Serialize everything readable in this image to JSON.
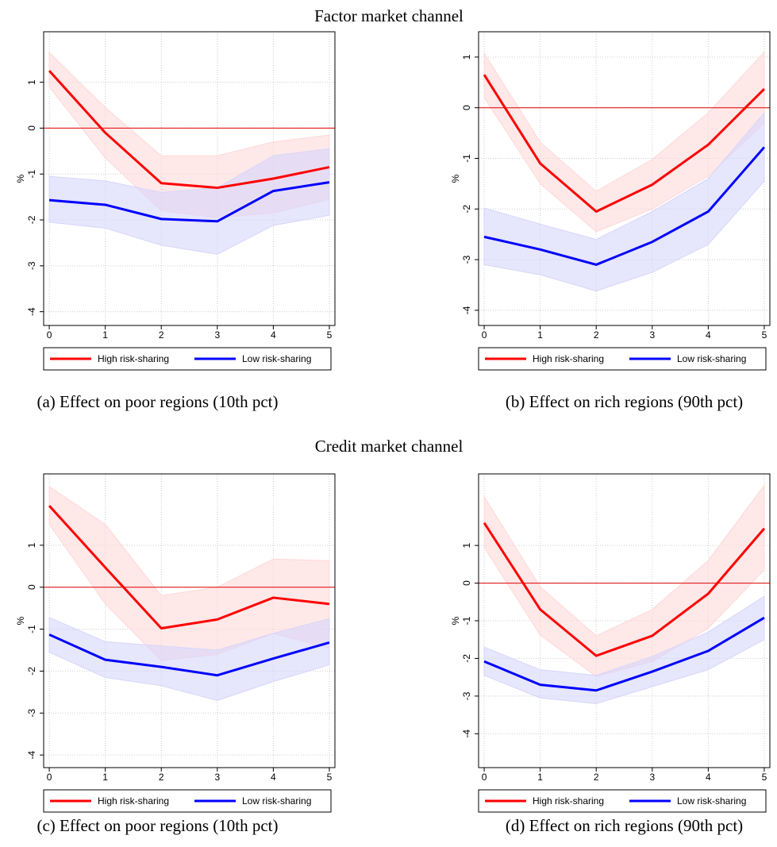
{
  "headings": [
    "Factor market channel",
    "Credit market channel"
  ],
  "chart_data": [
    {
      "type": "line",
      "caption": "(a) Effect on poor regions (10th pct)",
      "ylabel": "%",
      "x": [
        0,
        1,
        2,
        3,
        4,
        5
      ],
      "xlim": [
        -0.1,
        5.1
      ],
      "xticks": [
        0,
        1,
        2,
        3,
        4,
        5
      ],
      "ylim": [
        -4.3,
        2.1
      ],
      "yticks": [
        1,
        0,
        -1,
        -2,
        -3,
        -4
      ],
      "grid": true,
      "hline": 0,
      "hline_color": "#e00000",
      "series": [
        {
          "name": "High risk-sharing",
          "color": "#ff0000",
          "band_color": "#ffd8d8",
          "values": [
            1.25,
            -0.1,
            -1.2,
            -1.3,
            -1.1,
            -0.85
          ],
          "upper": [
            1.65,
            0.45,
            -0.6,
            -0.6,
            -0.3,
            -0.15
          ],
          "lower": [
            0.9,
            -0.65,
            -1.8,
            -1.95,
            -1.85,
            -1.55
          ]
        },
        {
          "name": "Low risk-sharing",
          "color": "#0000ff",
          "band_color": "#d6d6fb",
          "values": [
            -1.57,
            -1.67,
            -1.98,
            -2.03,
            -1.37,
            -1.18
          ],
          "upper": [
            -1.05,
            -1.15,
            -1.4,
            -1.3,
            -0.6,
            -0.45
          ],
          "lower": [
            -2.05,
            -2.18,
            -2.55,
            -2.75,
            -2.12,
            -1.9
          ]
        }
      ]
    },
    {
      "type": "line",
      "caption": "(b) Effect on rich regions (90th pct)",
      "ylabel": "%",
      "x": [
        0,
        1,
        2,
        3,
        4,
        5
      ],
      "xlim": [
        -0.1,
        5.1
      ],
      "xticks": [
        0,
        1,
        2,
        3,
        4,
        5
      ],
      "ylim": [
        -4.3,
        1.5
      ],
      "yticks": [
        1,
        0,
        -1,
        -2,
        -3,
        -4
      ],
      "grid": true,
      "hline": 0,
      "hline_color": "#e00000",
      "series": [
        {
          "name": "High risk-sharing",
          "color": "#ff0000",
          "band_color": "#ffd8d8",
          "values": [
            0.65,
            -1.1,
            -2.05,
            -1.52,
            -0.73,
            0.37
          ],
          "upper": [
            1.08,
            -0.68,
            -1.65,
            -1.02,
            -0.1,
            1.1
          ],
          "lower": [
            0.2,
            -1.5,
            -2.45,
            -2.0,
            -1.35,
            -0.3
          ]
        },
        {
          "name": "Low risk-sharing",
          "color": "#0000ff",
          "band_color": "#d6d6fb",
          "values": [
            -2.55,
            -2.8,
            -3.1,
            -2.65,
            -2.05,
            -0.78
          ],
          "upper": [
            -1.98,
            -2.3,
            -2.6,
            -2.05,
            -1.4,
            -0.1
          ],
          "lower": [
            -3.1,
            -3.3,
            -3.62,
            -3.25,
            -2.7,
            -1.45
          ]
        }
      ]
    },
    {
      "type": "line",
      "caption": "(c) Effect on poor regions (10th pct)",
      "ylabel": "%",
      "x": [
        0,
        1,
        2,
        3,
        4,
        5
      ],
      "xlim": [
        -0.1,
        5.1
      ],
      "xticks": [
        0,
        1,
        2,
        3,
        4,
        5
      ],
      "ylim": [
        -4.3,
        2.7
      ],
      "yticks": [
        1,
        0,
        -1,
        -2,
        -3,
        -4
      ],
      "grid": true,
      "hline": 0,
      "hline_color": "#e00000",
      "series": [
        {
          "name": "High risk-sharing",
          "color": "#ff0000",
          "band_color": "#ffd8d8",
          "values": [
            1.94,
            0.47,
            -0.98,
            -0.77,
            -0.25,
            -0.4
          ],
          "upper": [
            2.4,
            1.5,
            -0.2,
            0.0,
            0.67,
            0.63
          ],
          "lower": [
            1.5,
            -0.4,
            -1.75,
            -1.6,
            -1.1,
            -1.45
          ]
        },
        {
          "name": "Low risk-sharing",
          "color": "#0000ff",
          "band_color": "#d6d6fb",
          "values": [
            -1.13,
            -1.73,
            -1.9,
            -2.1,
            -1.7,
            -1.32
          ],
          "upper": [
            -0.72,
            -1.3,
            -1.4,
            -1.5,
            -1.1,
            -0.75
          ],
          "lower": [
            -1.55,
            -2.15,
            -2.35,
            -2.7,
            -2.25,
            -1.85
          ]
        }
      ]
    },
    {
      "type": "line",
      "caption": "(d) Effect on rich regions (90th pct)",
      "ylabel": "%",
      "x": [
        0,
        1,
        2,
        3,
        4,
        5
      ],
      "xlim": [
        -0.1,
        5.1
      ],
      "xticks": [
        0,
        1,
        2,
        3,
        4,
        5
      ],
      "ylim": [
        -4.9,
        2.9
      ],
      "yticks": [
        1,
        0,
        -1,
        -2,
        -3,
        -4
      ],
      "grid": true,
      "hline": 0,
      "hline_color": "#e00000",
      "series": [
        {
          "name": "High risk-sharing",
          "color": "#ff0000",
          "band_color": "#ffd8d8",
          "values": [
            1.6,
            -0.7,
            -1.93,
            -1.4,
            -0.28,
            1.45
          ],
          "upper": [
            2.3,
            -0.1,
            -1.4,
            -0.7,
            0.6,
            2.6
          ],
          "lower": [
            0.95,
            -1.38,
            -2.48,
            -2.08,
            -1.2,
            0.35
          ]
        },
        {
          "name": "Low risk-sharing",
          "color": "#0000ff",
          "band_color": "#d6d6fb",
          "values": [
            -2.08,
            -2.7,
            -2.85,
            -2.35,
            -1.8,
            -0.92
          ],
          "upper": [
            -1.7,
            -2.3,
            -2.45,
            -1.95,
            -1.3,
            -0.35
          ],
          "lower": [
            -2.45,
            -3.05,
            -3.2,
            -2.75,
            -2.3,
            -1.5
          ]
        }
      ]
    }
  ]
}
